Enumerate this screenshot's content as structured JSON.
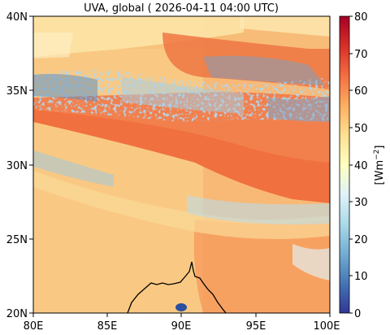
{
  "title": "UVA, global ( 2026-04-11 04:00 UTC)",
  "map": {
    "lon_range": [
      80,
      100
    ],
    "lat_range": [
      20,
      40
    ],
    "x_ticks": [
      "80E",
      "85E",
      "90E",
      "95E",
      "100E"
    ],
    "y_ticks": [
      "20N",
      "25N",
      "30N",
      "35N",
      "40N"
    ]
  },
  "colorbar": {
    "min": 0,
    "max": 80,
    "ticks": [
      "0",
      "10",
      "20",
      "30",
      "40",
      "50",
      "60",
      "70",
      "80"
    ],
    "label": "[Wm",
    "label_sup": "−2",
    "label_end": "]",
    "colors": [
      "#313695",
      "#4575b4",
      "#74add1",
      "#abd9e9",
      "#e0f3f8",
      "#ffffbf",
      "#fee090",
      "#fdae61",
      "#f46d43",
      "#d73027",
      "#a50026"
    ]
  }
}
